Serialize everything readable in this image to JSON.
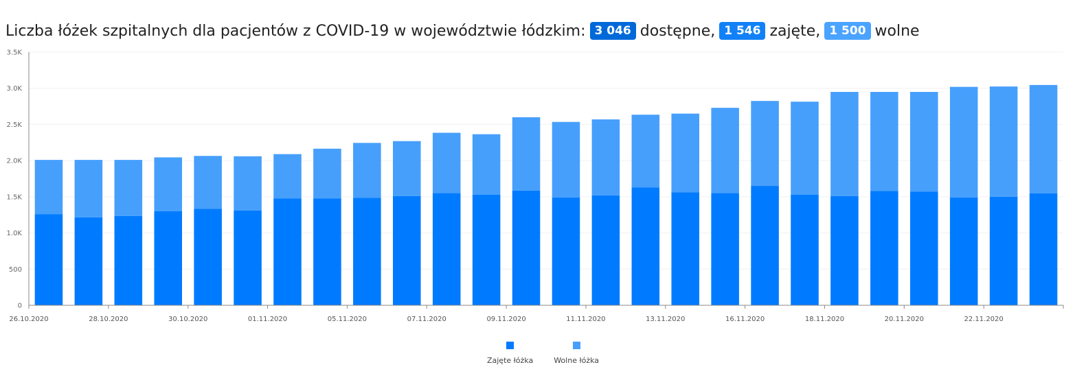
{
  "header": {
    "title_prefix": "Liczba łóżek szpitalnych dla pacjentów z COVID-19 w województwie łódzkim:",
    "available_value": "3 046",
    "available_label": "dostępne,",
    "occupied_value": "1 546",
    "occupied_label": "zajęte,",
    "free_value": "1 500",
    "free_label": "wolne"
  },
  "colors": {
    "occupied": "#007bff",
    "free": "#479ffc",
    "badge_available": "#0069d9",
    "badge_occupied": "#1281f7",
    "badge_free": "#4aa3ff"
  },
  "chart_data": {
    "type": "bar",
    "stacked": true,
    "x_tick_labels": [
      "26.10.2020",
      "28.10.2020",
      "30.10.2020",
      "01.11.2020",
      "05.11.2020",
      "07.11.2020",
      "09.11.2020",
      "11.11.2020",
      "13.11.2020",
      "16.11.2020",
      "18.11.2020",
      "20.11.2020",
      "22.11.2020"
    ],
    "bar_count": 26,
    "series": [
      {
        "name": "Zajęte łóżka",
        "values": [
          1260,
          1215,
          1235,
          1300,
          1335,
          1310,
          1475,
          1475,
          1485,
          1510,
          1550,
          1530,
          1585,
          1490,
          1520,
          1630,
          1560,
          1550,
          1650,
          1530,
          1510,
          1580,
          1570,
          1490,
          1500,
          1546
        ]
      },
      {
        "name": "Wolne łóżka",
        "values": [
          750,
          795,
          775,
          745,
          730,
          750,
          615,
          690,
          760,
          760,
          835,
          835,
          1015,
          1045,
          1050,
          1005,
          1090,
          1180,
          1175,
          1285,
          1440,
          1370,
          1380,
          1530,
          1525,
          1500
        ]
      }
    ],
    "ylim": [
      0,
      3500
    ],
    "y_ticks": [
      {
        "value": 0,
        "label": "0"
      },
      {
        "value": 500,
        "label": "500"
      },
      {
        "value": 1000,
        "label": "1.0K"
      },
      {
        "value": 1500,
        "label": "1.5K"
      },
      {
        "value": 2000,
        "label": "2.0K"
      },
      {
        "value": 2500,
        "label": "2.5K"
      },
      {
        "value": 3000,
        "label": "3.0K"
      },
      {
        "value": 3500,
        "label": "3.5K"
      }
    ],
    "grid": true,
    "legend_position": "bottom-center"
  }
}
